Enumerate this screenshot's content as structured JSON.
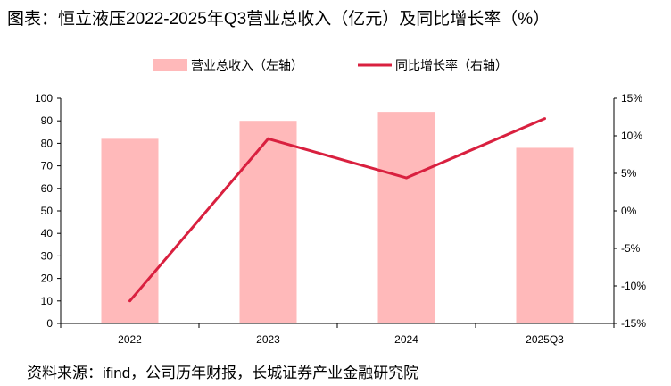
{
  "title": "图表：恒立液压2022-2025年Q3营业总收入（亿元）及同比增长率（%）",
  "source": "资料来源：ifind，公司历年财报，长城证券产业金融研究院",
  "chart_data": {
    "type": "bar",
    "categories": [
      "2022",
      "2023",
      "2024",
      "2025Q3"
    ],
    "series": [
      {
        "name": "营业总收入（左轴）",
        "kind": "bar",
        "axis": "left",
        "color": "#ffb9ba",
        "values": [
          82,
          90,
          94,
          78
        ]
      },
      {
        "name": "同比增长率（右轴）",
        "kind": "line",
        "axis": "right",
        "color": "#d9203f",
        "values": [
          -12.0,
          9.6,
          4.4,
          12.3
        ]
      }
    ],
    "left_axis": {
      "min": 0,
      "max": 100,
      "ticks": [
        "0",
        "10",
        "20",
        "30",
        "40",
        "50",
        "60",
        "70",
        "80",
        "90",
        "100"
      ]
    },
    "right_axis": {
      "min": -15,
      "max": 15,
      "ticks": [
        "-15%",
        "-10%",
        "-5%",
        "0%",
        "5%",
        "10%",
        "15%"
      ]
    },
    "legend_position": "top-center",
    "grid": false
  }
}
